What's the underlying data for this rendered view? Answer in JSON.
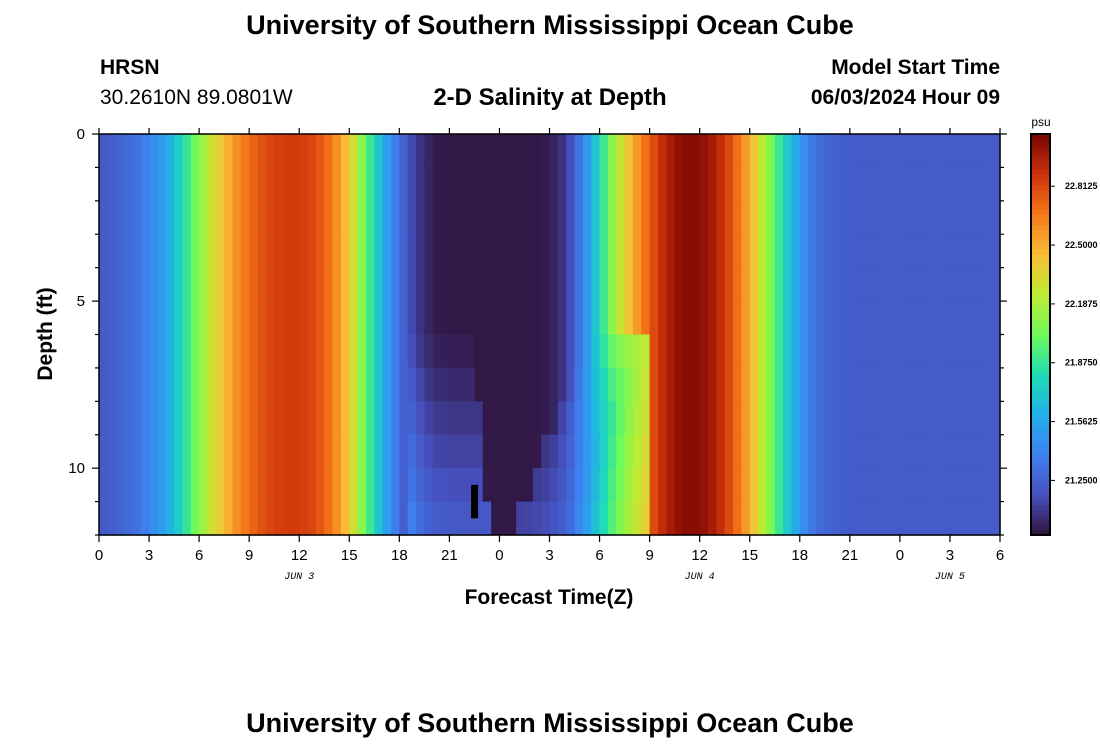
{
  "header": {
    "title": "University of Southern Mississippi Ocean Cube",
    "station_code": "HRSN",
    "station_coords": "30.2610N  89.0801W",
    "subtitle": "2-D Salinity at Depth",
    "model_start_label": "Model Start Time",
    "model_start_value": "06/03/2024 Hour 09"
  },
  "footer": {
    "title": "University of Southern Mississippi Ocean Cube"
  },
  "chart_data": {
    "type": "heatmap",
    "title": "2-D Salinity at Depth",
    "xlabel": "Forecast Time(Z)",
    "ylabel": "Depth (ft)",
    "x_range_hours": [
      0,
      54
    ],
    "y_range_ft": [
      0,
      12
    ],
    "x_tick_labels": [
      "0",
      "3",
      "6",
      "9",
      "12",
      "15",
      "18",
      "21",
      "0",
      "3",
      "6",
      "9",
      "12",
      "15",
      "18",
      "21",
      "0",
      "3",
      "6"
    ],
    "y_tick_labels": [
      "0",
      "5",
      "10"
    ],
    "y_tick_values": [
      0,
      5,
      10
    ],
    "date_labels": [
      {
        "text": "JUN 3",
        "hour": 12
      },
      {
        "text": "JUN 4",
        "hour": 36
      },
      {
        "text": "JUN 5",
        "hour": 51
      }
    ],
    "colorbar": {
      "unit": "psu",
      "min": 20.96,
      "max": 23.09,
      "ticks": [
        "22.8125",
        "22.5000",
        "22.1875",
        "21.8750",
        "21.5625",
        "21.2500"
      ],
      "tick_values": [
        22.8125,
        22.5,
        22.1875,
        21.875,
        21.5625,
        21.25
      ]
    },
    "surface_salinity_by_hour": [
      21.2,
      21.25,
      21.3,
      21.4,
      21.55,
      21.8,
      22.1,
      22.35,
      22.55,
      22.7,
      22.8,
      22.85,
      22.85,
      22.8,
      22.65,
      22.4,
      22.0,
      21.6,
      21.3,
      21.1,
      21.0,
      20.98,
      20.98,
      20.98,
      20.98,
      20.98,
      20.98,
      21.0,
      21.1,
      21.4,
      21.8,
      22.2,
      22.5,
      22.75,
      22.95,
      23.05,
      23.05,
      22.95,
      22.75,
      22.5,
      22.15,
      21.8,
      21.5,
      21.3,
      21.25,
      21.22,
      21.22,
      21.22,
      21.22,
      21.22,
      21.22,
      21.22,
      21.22,
      21.22,
      21.22
    ],
    "depth_modifier": {
      "low_salinity_core_hours": [
        20.5,
        30.5
      ],
      "core_shrinks_with_depth": true,
      "bottom_gap_hours": [
        22.0,
        23.0
      ],
      "bottom_gap_depth_ft": [
        10.5,
        11.5
      ]
    }
  }
}
